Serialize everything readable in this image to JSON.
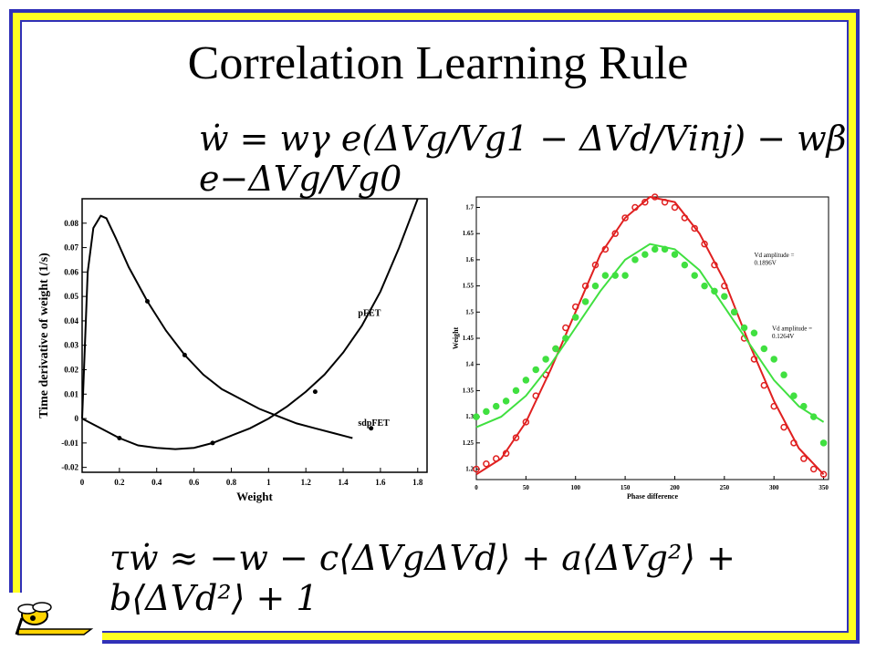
{
  "slide": {
    "title": "Correlation Learning Rule",
    "equation_top": "ẇ = wγ e(ΔVg/Vg1 − ΔVd/Vinj) − wβ e−ΔVg/Vg0",
    "equation_bottom": "τẇ ≈ −w − c⟨ΔVgΔVd⟩ + a⟨ΔVg²⟩ + b⟨ΔVd²⟩ + 1"
  },
  "chart_data": [
    {
      "type": "line",
      "ylabel": "Time derivative of weight (1/s)",
      "xlabel": "Weight",
      "xlim": [
        0,
        1.85
      ],
      "ylim": [
        -0.022,
        0.09
      ],
      "xticks": [
        "0",
        "0.2",
        "0.4",
        "0.6",
        "0.8",
        "1",
        "1.2",
        "1.4",
        "1.6",
        "1.8"
      ],
      "yticks": [
        "-0.02",
        "-0.01",
        "0",
        "0.01",
        "0.02",
        "0.03",
        "0.04",
        "0.05",
        "0.06",
        "0.07",
        "0.08"
      ],
      "series": [
        {
          "name": "pFET",
          "x": [
            0.0,
            0.03,
            0.06,
            0.1,
            0.13,
            0.18,
            0.25,
            0.35,
            0.45,
            0.55,
            0.65,
            0.75,
            0.85,
            0.95,
            1.05,
            1.15,
            1.25,
            1.35,
            1.45
          ],
          "y": [
            0.0,
            0.06,
            0.078,
            0.083,
            0.082,
            0.074,
            0.062,
            0.048,
            0.036,
            0.026,
            0.018,
            0.012,
            0.008,
            0.004,
            0.001,
            -0.002,
            -0.004,
            -0.006,
            -0.008
          ]
        },
        {
          "name": "sdpFET",
          "x": [
            0.0,
            0.1,
            0.2,
            0.3,
            0.4,
            0.5,
            0.6,
            0.7,
            0.8,
            0.9,
            1.0,
            1.1,
            1.2,
            1.3,
            1.4,
            1.5,
            1.6,
            1.7,
            1.8
          ],
          "y": [
            0.0,
            -0.004,
            -0.008,
            -0.011,
            -0.012,
            -0.0125,
            -0.012,
            -0.01,
            -0.007,
            -0.004,
            0.0,
            0.005,
            0.011,
            0.018,
            0.027,
            0.038,
            0.052,
            0.07,
            0.092
          ]
        }
      ],
      "annotations": [
        "pFET",
        "sdpFET"
      ]
    },
    {
      "type": "scatter",
      "ylabel": "Weight",
      "xlabel": "Phase difference",
      "xlim": [
        0,
        355
      ],
      "ylim": [
        1.18,
        1.72
      ],
      "xticks": [
        "0",
        "50",
        "100",
        "150",
        "200",
        "250",
        "300",
        "350"
      ],
      "yticks": [
        "1.2",
        "1.25",
        "1.3",
        "1.35",
        "1.4",
        "1.45",
        "1.5",
        "1.55",
        "1.6",
        "1.65",
        "1.7"
      ],
      "annotations": [
        "Vd amplitude =",
        "0.1896V",
        "Vd amplitude =",
        "0.1264V"
      ],
      "colors": {
        "red": "#e02020",
        "green": "#40e040"
      },
      "series": [
        {
          "name": "Vd amplitude = 0.1896V",
          "color": "#e02020",
          "x": [
            0,
            10,
            20,
            30,
            40,
            50,
            60,
            70,
            80,
            90,
            100,
            110,
            120,
            130,
            140,
            150,
            160,
            170,
            180,
            190,
            200,
            210,
            220,
            230,
            240,
            250,
            260,
            270,
            280,
            290,
            300,
            310,
            320,
            330,
            340,
            350
          ],
          "y": [
            1.2,
            1.21,
            1.22,
            1.23,
            1.26,
            1.29,
            1.34,
            1.38,
            1.43,
            1.47,
            1.51,
            1.55,
            1.59,
            1.62,
            1.65,
            1.68,
            1.7,
            1.71,
            1.72,
            1.71,
            1.7,
            1.68,
            1.66,
            1.63,
            1.59,
            1.55,
            1.5,
            1.45,
            1.41,
            1.36,
            1.32,
            1.28,
            1.25,
            1.22,
            1.2,
            1.19
          ],
          "fit_x": [
            0,
            25,
            50,
            75,
            100,
            125,
            150,
            175,
            200,
            225,
            250,
            275,
            300,
            325,
            350
          ],
          "fit_y": [
            1.19,
            1.22,
            1.29,
            1.39,
            1.5,
            1.61,
            1.68,
            1.72,
            1.71,
            1.65,
            1.56,
            1.44,
            1.33,
            1.24,
            1.19
          ]
        },
        {
          "name": "Vd amplitude = 0.1264V",
          "color": "#40e040",
          "x": [
            0,
            10,
            20,
            30,
            40,
            50,
            60,
            70,
            80,
            90,
            100,
            110,
            120,
            130,
            140,
            150,
            160,
            170,
            180,
            190,
            200,
            210,
            220,
            230,
            240,
            250,
            260,
            270,
            280,
            290,
            300,
            310,
            320,
            330,
            340,
            350
          ],
          "y": [
            1.3,
            1.31,
            1.32,
            1.33,
            1.35,
            1.37,
            1.39,
            1.41,
            1.43,
            1.45,
            1.49,
            1.52,
            1.55,
            1.57,
            1.57,
            1.57,
            1.6,
            1.61,
            1.62,
            1.62,
            1.61,
            1.59,
            1.57,
            1.55,
            1.54,
            1.53,
            1.5,
            1.47,
            1.46,
            1.43,
            1.41,
            1.38,
            1.34,
            1.32,
            1.3,
            1.25
          ],
          "fit_x": [
            0,
            25,
            50,
            75,
            100,
            125,
            150,
            175,
            200,
            225,
            250,
            275,
            300,
            325,
            350
          ],
          "fit_y": [
            1.28,
            1.3,
            1.34,
            1.4,
            1.47,
            1.54,
            1.6,
            1.63,
            1.62,
            1.58,
            1.51,
            1.44,
            1.37,
            1.32,
            1.29
          ]
        }
      ]
    }
  ]
}
